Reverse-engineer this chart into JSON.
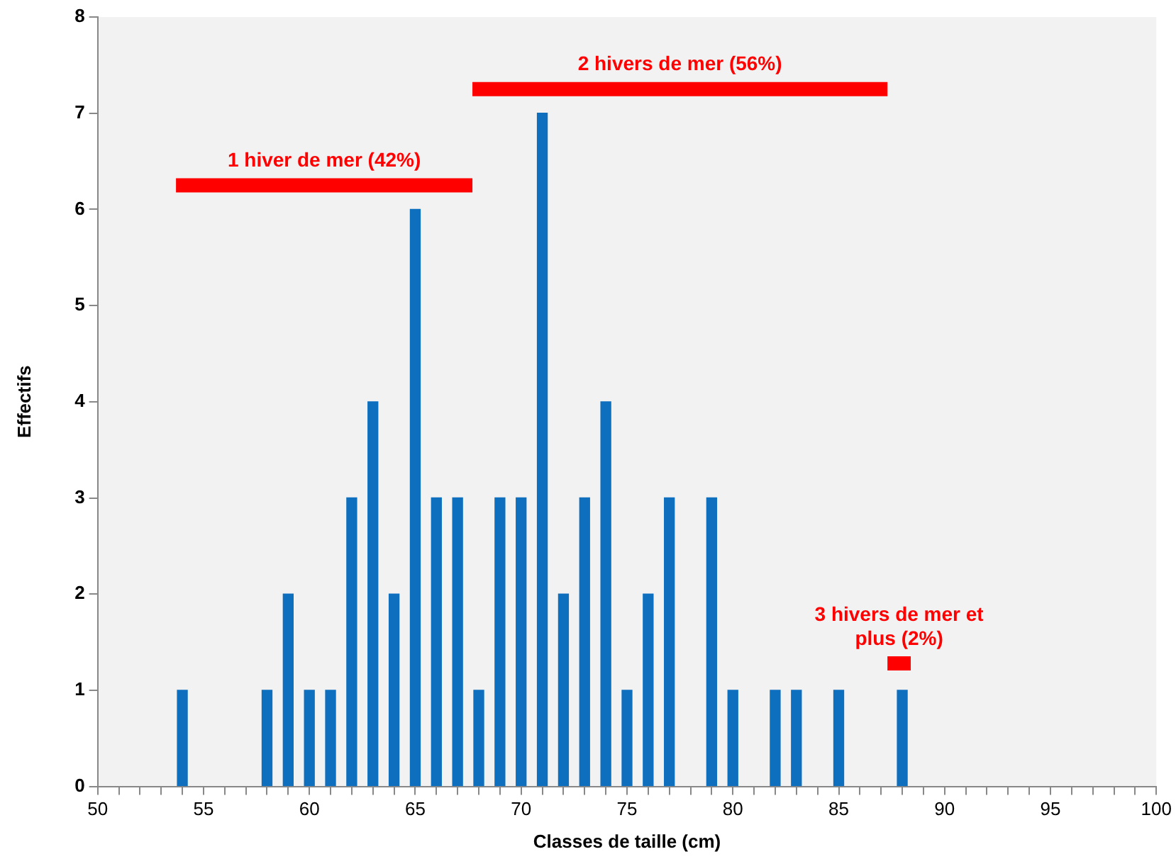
{
  "chart_data": {
    "type": "bar",
    "xlabel": "Classes de taille (cm)",
    "ylabel": "Effectifs",
    "xlim": [
      50,
      100
    ],
    "xticks": [
      50,
      {
        "value": 51,
        "label": null
      },
      {
        "value": 52,
        "label": null
      },
      {
        "value": 53,
        "label": null
      },
      {
        "value": 54,
        "label": null
      },
      55,
      {
        "value": 56,
        "label": null
      },
      {
        "value": 57,
        "label": null
      },
      {
        "value": 58,
        "label": null
      },
      {
        "value": 59,
        "label": null
      },
      60,
      {
        "value": 61,
        "label": null
      },
      {
        "value": 62,
        "label": null
      },
      {
        "value": 63,
        "label": null
      },
      {
        "value": 64,
        "label": null
      },
      65,
      {
        "value": 66,
        "label": null
      },
      {
        "value": 67,
        "label": null
      },
      {
        "value": 68,
        "label": null
      },
      {
        "value": 69,
        "label": null
      },
      70,
      {
        "value": 71,
        "label": null
      },
      {
        "value": 72,
        "label": null
      },
      {
        "value": 73,
        "label": null
      },
      {
        "value": 74,
        "label": null
      },
      75,
      {
        "value": 76,
        "label": null
      },
      {
        "value": 77,
        "label": null
      },
      {
        "value": 78,
        "label": null
      },
      {
        "value": 79,
        "label": null
      },
      80,
      {
        "value": 81,
        "label": null
      },
      {
        "value": 82,
        "label": null
      },
      {
        "value": 83,
        "label": null
      },
      {
        "value": 84,
        "label": null
      },
      85,
      {
        "value": 86,
        "label": null
      },
      {
        "value": 87,
        "label": null
      },
      {
        "value": 88,
        "label": null
      },
      {
        "value": 89,
        "label": null
      },
      90,
      {
        "value": 91,
        "label": null
      },
      {
        "value": 92,
        "label": null
      },
      {
        "value": 93,
        "label": null
      },
      {
        "value": 94,
        "label": null
      },
      95,
      {
        "value": 96,
        "label": null
      },
      {
        "value": 97,
        "label": null
      },
      {
        "value": 98,
        "label": null
      },
      {
        "value": 99,
        "label": null
      },
      100
    ],
    "ylim": [
      0,
      8
    ],
    "yticks": [
      0,
      1,
      2,
      3,
      4,
      5,
      6,
      7,
      8
    ],
    "grid": false,
    "legend": false,
    "series": [
      {
        "color": "#0f6fbf",
        "x": [
          54,
          58,
          59,
          60,
          61,
          62,
          63,
          64,
          65,
          66,
          67,
          68,
          69,
          70,
          71,
          72,
          73,
          74,
          75,
          76,
          77,
          79,
          80,
          82,
          83,
          85,
          88
        ],
        "values": [
          1,
          1,
          2,
          1,
          1,
          3,
          4,
          2,
          6,
          3,
          3,
          1,
          3,
          3,
          7,
          2,
          3,
          4,
          1,
          2,
          3,
          3,
          1,
          1,
          1,
          1,
          1
        ]
      },
      {
        "type": "line",
        "name": "1 hiver de mer (42%)",
        "color": "#ff0000",
        "x": [
          53.7,
          67.7
        ],
        "values": [
          6.25,
          6.25
        ]
      },
      {
        "type": "line",
        "name": "2 hivers de mer (56%)",
        "color": "#ff0000",
        "x": [
          67.7,
          87.3
        ],
        "values": [
          7.25,
          7.25
        ]
      },
      {
        "type": "line",
        "name": "3 hivers de mer et plus (2%)",
        "color": "#ff0000",
        "x": [
          87.3,
          88.4
        ],
        "values": [
          1.28,
          1.28
        ]
      }
    ]
  }
}
